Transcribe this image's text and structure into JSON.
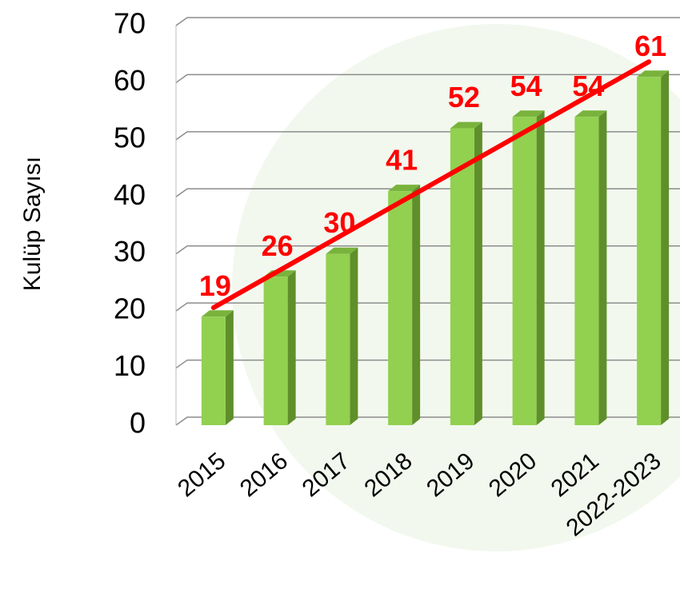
{
  "chart_data": {
    "type": "bar",
    "y_axis_label": "Kulüp Sayısı",
    "categories": [
      "2015",
      "2016",
      "2017",
      "2018",
      "2019",
      "2020",
      "2021",
      "2022-2023"
    ],
    "values": [
      19,
      26,
      30,
      41,
      52,
      54,
      54,
      61
    ],
    "color": "#92d050",
    "value_label_color": "#ff0000",
    "ylim": [
      0,
      70
    ],
    "yticks": [
      0,
      10,
      20,
      30,
      40,
      50,
      60,
      70
    ],
    "grid": true,
    "trendline": true,
    "trendline_color": "#ff0000"
  }
}
